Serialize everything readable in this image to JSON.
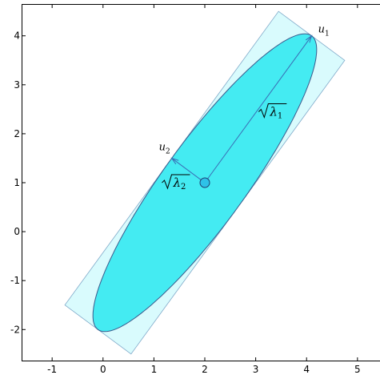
{
  "chart_data": {
    "type": "scatter",
    "title": "",
    "xlabel": "",
    "ylabel": "",
    "xlim": [
      -1.6,
      5.6
    ],
    "ylim": [
      -2.65,
      4.65
    ],
    "xticks": [
      -1,
      0,
      1,
      2,
      3,
      4,
      5
    ],
    "yticks": [
      -2,
      -1,
      0,
      1,
      2,
      3,
      4
    ],
    "xtick_labels": [
      "-1",
      "0",
      "1",
      "2",
      "3",
      "4",
      "5"
    ],
    "ytick_labels": [
      "-2",
      "-1",
      "0",
      "1",
      "2",
      "3",
      "4"
    ],
    "grid": false,
    "mean": {
      "x": 2,
      "y": 1
    },
    "ellipse": {
      "major_end": {
        "x": 4.1,
        "y": 4.0
      },
      "minor_end": {
        "x": 1.35,
        "y": 1.5
      }
    },
    "vectors": [
      {
        "label": "u",
        "subscript": "1",
        "from": {
          "x": 2,
          "y": 1
        },
        "to": {
          "x": 4.1,
          "y": 4.0
        }
      },
      {
        "label": "u",
        "subscript": "2",
        "from": {
          "x": 2,
          "y": 1
        },
        "to": {
          "x": 1.35,
          "y": 1.5
        }
      }
    ],
    "annotations": [
      {
        "text": "λ",
        "subscript": "1",
        "at": {
          "x": 3.2,
          "y": 2.4
        }
      },
      {
        "text": "λ",
        "subscript": "2",
        "at": {
          "x": 1.3,
          "y": 0.95
        }
      }
    ],
    "colors": {
      "ellipse_fill": "#44EBF2",
      "rect_fill": "#D9FBFD",
      "edge": "#3A5A8C",
      "mean_fill": "#2EC2E8",
      "arrow": "#3A6DB5"
    }
  }
}
